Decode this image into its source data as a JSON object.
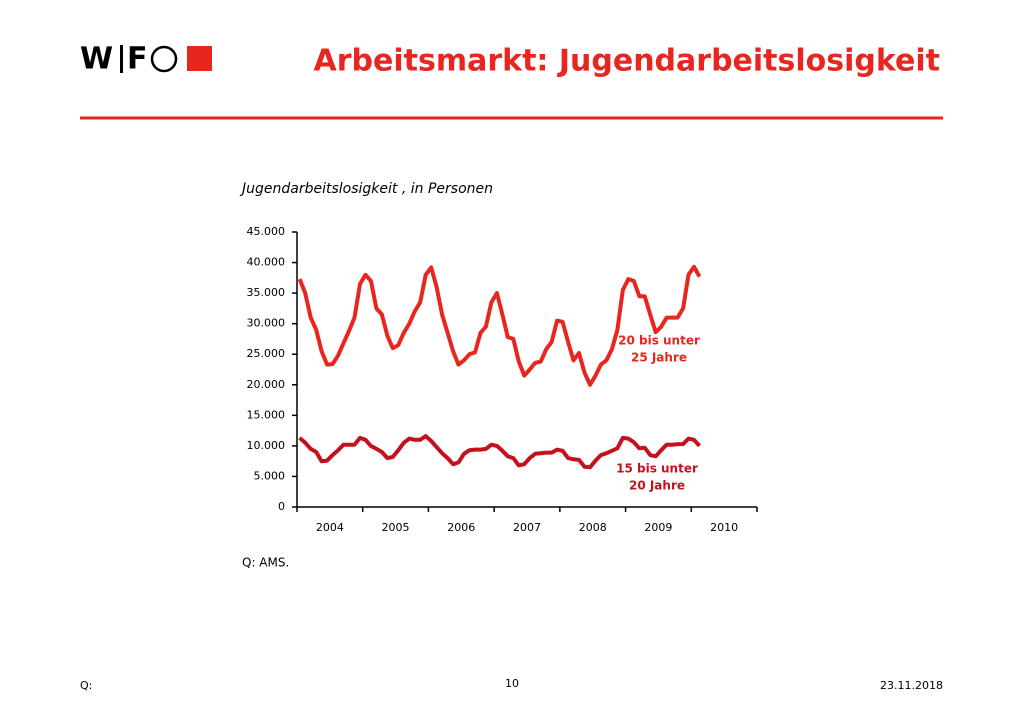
{
  "header": {
    "logo_letters": [
      "W",
      "F"
    ],
    "title": "Arbeitsmarkt: Jugendarbeitslosigkeit"
  },
  "chart_data": {
    "type": "line",
    "title": "Jugendarbeitslosigkeit , in Personen",
    "source": "Q:  AMS.",
    "categories": [
      null,
      null,
      null,
      null,
      null,
      null,
      "2004",
      null,
      null,
      null,
      null,
      null,
      null,
      null,
      null,
      null,
      null,
      null,
      "2005",
      null,
      null,
      null,
      null,
      null,
      null,
      null,
      null,
      null,
      null,
      null,
      "2006",
      null,
      null,
      null,
      null,
      null,
      null,
      null,
      null,
      null,
      null,
      null,
      "2007",
      null,
      null,
      null,
      null,
      null,
      null,
      null,
      null,
      null,
      null,
      null,
      "2008",
      null,
      null,
      null,
      null,
      null,
      null,
      null,
      null,
      null,
      null,
      null,
      "2009",
      null,
      null,
      null,
      null,
      null,
      null,
      null,
      null,
      null,
      null,
      null,
      "2010",
      null,
      null,
      null,
      null,
      null
    ],
    "ylim": [
      0,
      45000
    ],
    "yticks": [
      0,
      {
        "value": 5000,
        "label": "5.000"
      },
      {
        "value": 10000,
        "label": "10.000"
      },
      {
        "value": 15000,
        "label": "15.000"
      },
      {
        "value": 20000,
        "label": "20.000"
      },
      {
        "value": 25000,
        "label": "25.000"
      },
      {
        "value": 30000,
        "label": "30.000"
      },
      {
        "value": 35000,
        "label": "35.000"
      },
      {
        "value": 40000,
        "label": "40.000"
      },
      {
        "value": 45000,
        "label": "45.000"
      }
    ],
    "grid": false,
    "series": [
      {
        "name": [
          "20 bis unter",
          "25 Jahre"
        ],
        "color": "#e8251f",
        "values": [
          37300,
          35000,
          31000,
          29000,
          25500,
          23300,
          23400,
          24800,
          26800,
          28800,
          31000,
          36500,
          38000,
          37000,
          32500,
          31500,
          28000,
          26000,
          26500,
          28500,
          30000,
          32000,
          33500,
          38000,
          39200,
          36000,
          31500,
          28500,
          25500,
          23300,
          24000,
          25000,
          25300,
          28500,
          29500,
          33500,
          35000,
          31500,
          27800,
          27500,
          23800,
          21500,
          22500,
          23600,
          23800,
          25800,
          27000,
          30500,
          30300,
          27000,
          24000,
          25200,
          22000,
          20000,
          21500,
          23300,
          24000,
          25800,
          29000,
          35500,
          37300,
          37000,
          34500,
          34500,
          31500,
          28600,
          29500,
          31000,
          31000,
          31000,
          32500,
          38000,
          39300,
          37700,
          null,
          null,
          null,
          null,
          null,
          null,
          null,
          null,
          null,
          null
        ]
      },
      {
        "name": [
          "15 bis unter",
          "20 Jahre"
        ],
        "color": "#c3121c",
        "values": [
          11300,
          10500,
          9500,
          9000,
          7500,
          7600,
          8500,
          9300,
          10200,
          10200,
          10200,
          11300,
          11000,
          10000,
          9500,
          9000,
          8000,
          8200,
          9300,
          10500,
          11200,
          11000,
          11000,
          11600,
          10800,
          9800,
          8800,
          8000,
          7000,
          7300,
          8700,
          9300,
          9400,
          9400,
          9500,
          10200,
          10000,
          9200,
          8300,
          8000,
          6800,
          7000,
          8000,
          8700,
          8800,
          8900,
          8900,
          9400,
          9200,
          8000,
          7800,
          7700,
          6600,
          6500,
          7600,
          8500,
          8800,
          9200,
          9600,
          11300,
          11200,
          10600,
          9600,
          9700,
          8500,
          8300,
          9300,
          10200,
          10200,
          10300,
          10300,
          11200,
          11000,
          10000,
          null,
          null,
          null,
          null,
          null,
          null,
          null,
          null,
          null,
          null
        ]
      }
    ]
  },
  "footer": {
    "left": "Q:",
    "page": "10",
    "date": "23.11.2018"
  }
}
